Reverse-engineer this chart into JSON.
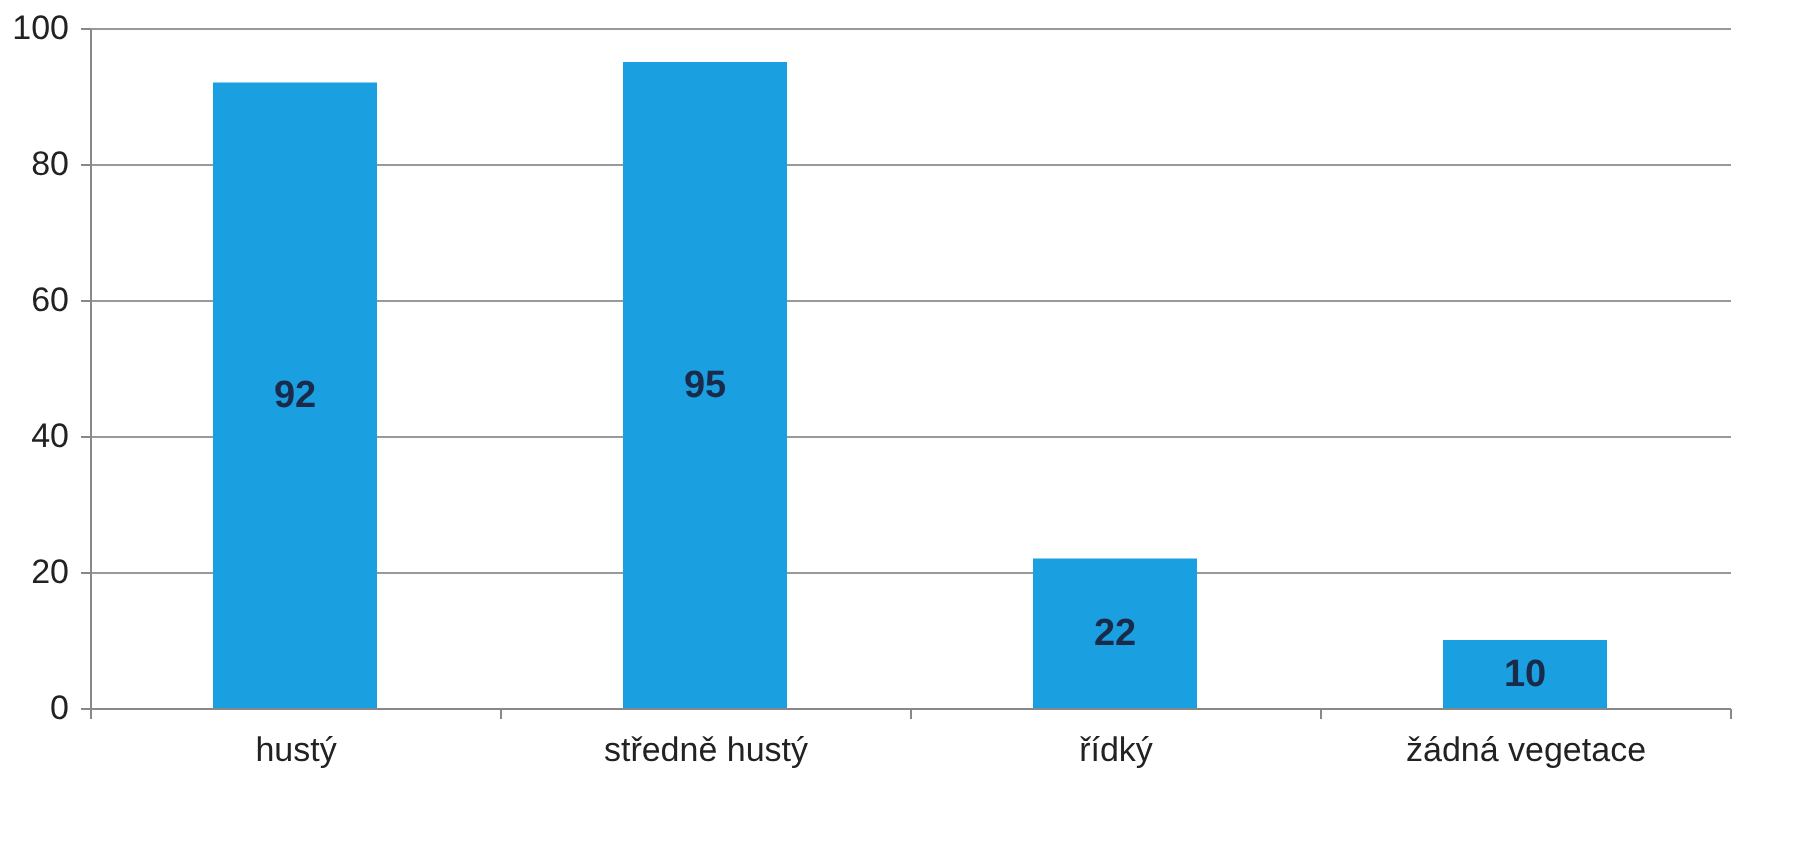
{
  "chart_data": {
    "type": "bar",
    "categories": [
      "hustý",
      "středně hustý",
      "řídký",
      "žádná vegetace"
    ],
    "values": [
      92,
      95,
      22,
      10
    ],
    "color": "#1a9fe0",
    "ylim": [
      0,
      100
    ],
    "yticks": [
      0,
      20,
      40,
      60,
      80,
      100
    ],
    "grid": "y",
    "data_labels": true
  }
}
